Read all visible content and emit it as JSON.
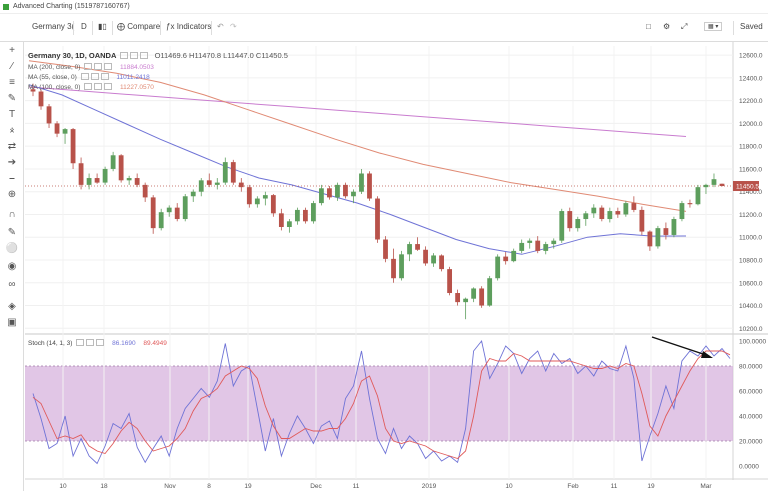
{
  "window": {
    "title": "Advanced Charting (1519787160767)"
  },
  "toolbar": {
    "symbol": "Germany 3(",
    "interval": "D",
    "compare": "Compare",
    "indicators": "Indicators",
    "saved": "Saved"
  },
  "legend": {
    "symbol_line": "Germany 30, 1D, OANDA",
    "ohlc": "O11469.6  H11470.8  L11447.0  C11450.5",
    "ma1": {
      "label": "MA (200, close, 0)",
      "value": "11884.0503"
    },
    "ma2": {
      "label": "MA (55, close, 0)",
      "value": "11011.2418"
    },
    "ma3": {
      "label": "MA (100, close, 0)",
      "value": "11227.0570"
    },
    "stoch": {
      "label": "Stoch (14, 1, 3)",
      "k": "86.1690",
      "d": "89.4949"
    }
  },
  "price_tag": "11450.5",
  "colors": {
    "up": "#5d9e5d",
    "down": "#b8524a",
    "ma200": "#c97ccf",
    "ma55": "#6f73d6",
    "ma100": "#e08a74",
    "stoch_k": "#6f73d6",
    "stoch_d": "#e05a5a",
    "stoch_band": "#d7b3dd"
  },
  "chart_data": [
    {
      "type": "candlestick",
      "title": "Germany 30, 1D, OANDA",
      "x_tick_labels": [
        "10",
        "18",
        "Nov",
        "8",
        "19",
        "Dec",
        "11",
        "2019",
        "10",
        "Feb",
        "11",
        "19",
        "Mar"
      ],
      "y_ticks": [
        10200,
        10400,
        10600,
        10800,
        11000,
        11200,
        11400,
        11600,
        11800,
        12000,
        12200,
        12400,
        12600
      ],
      "ylim": [
        10150,
        12680
      ],
      "candles": [
        [
          12300,
          12350,
          12240,
          12280
        ],
        [
          12280,
          12300,
          12120,
          12150
        ],
        [
          12150,
          12170,
          11960,
          12000
        ],
        [
          12000,
          12020,
          11880,
          11910
        ],
        [
          11910,
          11960,
          11820,
          11950
        ],
        [
          11950,
          11960,
          11600,
          11650
        ],
        [
          11650,
          11700,
          11420,
          11460
        ],
        [
          11460,
          11560,
          11420,
          11520
        ],
        [
          11520,
          11560,
          11470,
          11480
        ],
        [
          11480,
          11620,
          11460,
          11600
        ],
        [
          11600,
          11750,
          11580,
          11720
        ],
        [
          11720,
          11730,
          11480,
          11500
        ],
        [
          11500,
          11540,
          11460,
          11520
        ],
        [
          11520,
          11560,
          11440,
          11460
        ],
        [
          11460,
          11480,
          11310,
          11350
        ],
        [
          11350,
          11370,
          11030,
          11080
        ],
        [
          11080,
          11250,
          11060,
          11220
        ],
        [
          11220,
          11280,
          11180,
          11260
        ],
        [
          11260,
          11300,
          11140,
          11160
        ],
        [
          11160,
          11380,
          11140,
          11360
        ],
        [
          11360,
          11420,
          11310,
          11400
        ],
        [
          11400,
          11520,
          11360,
          11500
        ],
        [
          11500,
          11560,
          11440,
          11460
        ],
        [
          11460,
          11520,
          11420,
          11480
        ],
        [
          11480,
          11700,
          11460,
          11660
        ],
        [
          11660,
          11680,
          11460,
          11480
        ],
        [
          11480,
          11520,
          11400,
          11440
        ],
        [
          11440,
          11460,
          11260,
          11290
        ],
        [
          11290,
          11360,
          11260,
          11340
        ],
        [
          11340,
          11400,
          11280,
          11370
        ],
        [
          11370,
          11380,
          11180,
          11210
        ],
        [
          11210,
          11250,
          11060,
          11090
        ],
        [
          11090,
          11160,
          11040,
          11140
        ],
        [
          11140,
          11260,
          11110,
          11240
        ],
        [
          11240,
          11260,
          11120,
          11140
        ],
        [
          11140,
          11320,
          11120,
          11300
        ],
        [
          11300,
          11460,
          11280,
          11430
        ],
        [
          11430,
          11450,
          11330,
          11350
        ],
        [
          11350,
          11480,
          11320,
          11460
        ],
        [
          11460,
          11480,
          11340,
          11360
        ],
        [
          11360,
          11420,
          11300,
          11400
        ],
        [
          11400,
          11600,
          11380,
          11560
        ],
        [
          11560,
          11580,
          11320,
          11340
        ],
        [
          11340,
          11360,
          10950,
          10980
        ],
        [
          10980,
          11010,
          10780,
          10810
        ],
        [
          10810,
          10900,
          10600,
          10640
        ],
        [
          10640,
          10880,
          10620,
          10850
        ],
        [
          10850,
          10960,
          10790,
          10940
        ],
        [
          10940,
          11000,
          10880,
          10890
        ],
        [
          10890,
          10920,
          10750,
          10770
        ],
        [
          10770,
          10860,
          10740,
          10840
        ],
        [
          10840,
          10850,
          10700,
          10720
        ],
        [
          10720,
          10740,
          10490,
          10510
        ],
        [
          10510,
          10540,
          10400,
          10430
        ],
        [
          10430,
          10470,
          10280,
          10460
        ],
        [
          10460,
          10560,
          10430,
          10550
        ],
        [
          10550,
          10570,
          10380,
          10400
        ],
        [
          10400,
          10660,
          10390,
          10640
        ],
        [
          10640,
          10850,
          10620,
          10830
        ],
        [
          10830,
          10870,
          10760,
          10790
        ],
        [
          10790,
          10900,
          10780,
          10880
        ],
        [
          10880,
          10980,
          10860,
          10950
        ],
        [
          10950,
          10990,
          10900,
          10970
        ],
        [
          10970,
          11010,
          10860,
          10880
        ],
        [
          10880,
          10960,
          10850,
          10940
        ],
        [
          10940,
          10990,
          10900,
          10970
        ],
        [
          10970,
          11250,
          10950,
          11230
        ],
        [
          11230,
          11260,
          11050,
          11080
        ],
        [
          11080,
          11180,
          11050,
          11160
        ],
        [
          11160,
          11230,
          11100,
          11210
        ],
        [
          11210,
          11290,
          11170,
          11260
        ],
        [
          11260,
          11280,
          11140,
          11160
        ],
        [
          11160,
          11260,
          11130,
          11230
        ],
        [
          11230,
          11260,
          11170,
          11200
        ],
        [
          11200,
          11320,
          11180,
          11300
        ],
        [
          11300,
          11360,
          11220,
          11240
        ],
        [
          11240,
          11270,
          11020,
          11050
        ],
        [
          11050,
          11060,
          10880,
          10920
        ],
        [
          10920,
          11100,
          10900,
          11080
        ],
        [
          11080,
          11130,
          10980,
          11020
        ],
        [
          11020,
          11180,
          11000,
          11160
        ],
        [
          11160,
          11320,
          11140,
          11300
        ],
        [
          11300,
          11330,
          11260,
          11290
        ],
        [
          11290,
          11460,
          11280,
          11440
        ],
        [
          11440,
          11470,
          11380,
          11460
        ],
        [
          11460,
          11560,
          11440,
          11510
        ],
        [
          11470,
          11471,
          11447,
          11450
        ]
      ],
      "moving_averages": [
        {
          "name": "MA (200, close, 0)",
          "values": [
            12320,
            12291,
            12262,
            12233,
            12204,
            12175,
            12146,
            12117,
            12088,
            12059,
            12030,
            12001,
            11972,
            11943,
            11914,
            11885
          ]
        },
        {
          "name": "MA (55, close, 0)",
          "values": [
            12340,
            12250,
            12120,
            11990,
            11860,
            11740,
            11620,
            11520,
            11460,
            11380,
            11300,
            11200,
            11090,
            10980,
            10900,
            10850,
            10920,
            11000,
            11030,
            11010,
            11011
          ]
        },
        {
          "name": "MA (100, close, 0)",
          "values": [
            12550,
            12500,
            12440,
            12360,
            12250,
            12120,
            11990,
            11860,
            11740,
            11640,
            11560,
            11480,
            11420,
            11360,
            11290,
            11227
          ]
        }
      ]
    },
    {
      "type": "line",
      "title": "Stoch (14, 1, 3)",
      "y_ticks": [
        0,
        20,
        40,
        60,
        80,
        100
      ],
      "ylim": [
        -8,
        104
      ],
      "band": [
        20,
        80
      ],
      "series": [
        {
          "name": "%K",
          "values": [
            58,
            38,
            14,
            18,
            40,
            8,
            22,
            8,
            2,
            16,
            34,
            30,
            42,
            15,
            3,
            14,
            24,
            8,
            30,
            46,
            54,
            62,
            55,
            68,
            98,
            64,
            76,
            80,
            46,
            12,
            38,
            8,
            26,
            40,
            30,
            18,
            32,
            36,
            22,
            54,
            64,
            92,
            54,
            22,
            10,
            30,
            14,
            24,
            18,
            6,
            12,
            4,
            8,
            3,
            30,
            92,
            100,
            70,
            82,
            96,
            90,
            74,
            86,
            92,
            76,
            90,
            82,
            86,
            74,
            80,
            72,
            84,
            78,
            76,
            96,
            70,
            4,
            24,
            42,
            64,
            46,
            84,
            92,
            88,
            96,
            88,
            94,
            86
          ]
        },
        {
          "name": "%D",
          "values": [
            55,
            50,
            36,
            22,
            24,
            22,
            25,
            16,
            12,
            10,
            18,
            28,
            35,
            30,
            20,
            12,
            14,
            16,
            22,
            30,
            44,
            54,
            57,
            62,
            72,
            76,
            80,
            78,
            70,
            48,
            32,
            22,
            22,
            26,
            30,
            28,
            28,
            30,
            30,
            38,
            50,
            68,
            72,
            56,
            30,
            20,
            18,
            20,
            18,
            16,
            12,
            10,
            8,
            6,
            12,
            40,
            76,
            86,
            84,
            84,
            90,
            88,
            84,
            84,
            84,
            84,
            84,
            84,
            82,
            80,
            78,
            78,
            80,
            78,
            82,
            80,
            58,
            32,
            24,
            40,
            52,
            64,
            76,
            86,
            92,
            92,
            92,
            89
          ]
        }
      ]
    }
  ]
}
